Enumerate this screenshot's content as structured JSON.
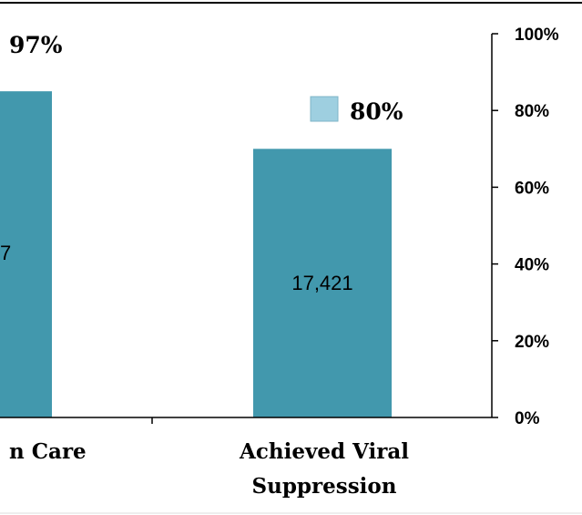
{
  "chart_data": {
    "type": "bar",
    "categories": [
      "n Care",
      "Achieved Viral Suppression"
    ],
    "category_label_lines": [
      [
        "n Care"
      ],
      [
        "Achieved Viral",
        "Suppression"
      ]
    ],
    "values": [
      85,
      70
    ],
    "bar_value_labels": [
      "7",
      "17,421"
    ],
    "percent_labels": [
      "97%",
      "80%"
    ],
    "ylim": [
      0,
      100
    ],
    "yticks": [
      0,
      20,
      40,
      60,
      80,
      100
    ],
    "ytick_labels": [
      "0%",
      "20%",
      "40%",
      "60%",
      "80%",
      "100%"
    ],
    "y_axis_side": "right",
    "grid": false,
    "legend_marker_color": "#9ecfe0",
    "colors": {
      "bar": "#4298ad",
      "axis": "#000000",
      "text": "#000000",
      "footer_line": "#dddddd"
    }
  }
}
